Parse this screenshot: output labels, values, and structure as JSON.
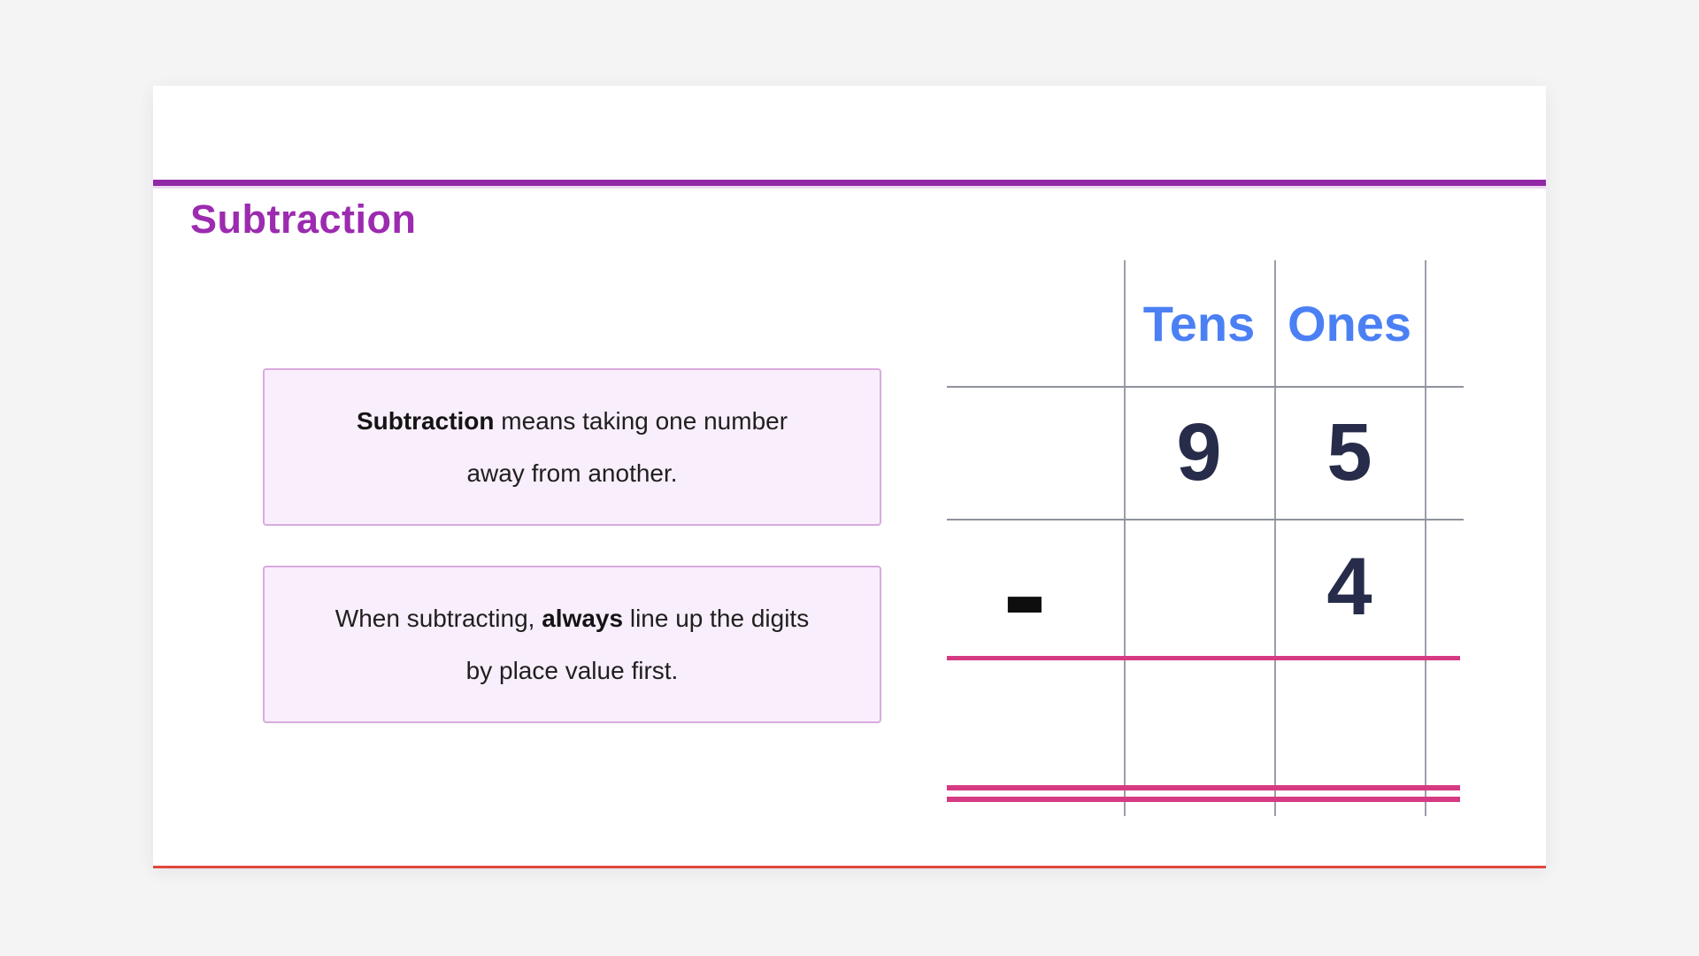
{
  "header": {
    "title": "Subtraction"
  },
  "theme": {
    "accent_purple": "#9c2bb0",
    "divider_purple": "#9128a7",
    "column_header_blue": "#4b80f5",
    "digit_navy": "#262c49",
    "result_line_pink": "#d53a82",
    "grid_line_gray": "#9b9ea9",
    "info_box_background": "#f9eefb",
    "info_box_border": "#d9abe0",
    "card_bottom_red": "#e0483d"
  },
  "info_boxes": [
    {
      "parts": [
        "Subtraction",
        " means taking one number",
        "away from another."
      ]
    },
    {
      "parts": [
        "When subtracting, ",
        "always",
        " line up the digits",
        "by place value first."
      ]
    }
  ],
  "worksheet": {
    "columns": [
      "Tens",
      "Ones"
    ],
    "minuend": {
      "tens": "9",
      "ones": "5"
    },
    "operator": "-",
    "subtrahend": {
      "tens": "",
      "ones": "4"
    }
  }
}
